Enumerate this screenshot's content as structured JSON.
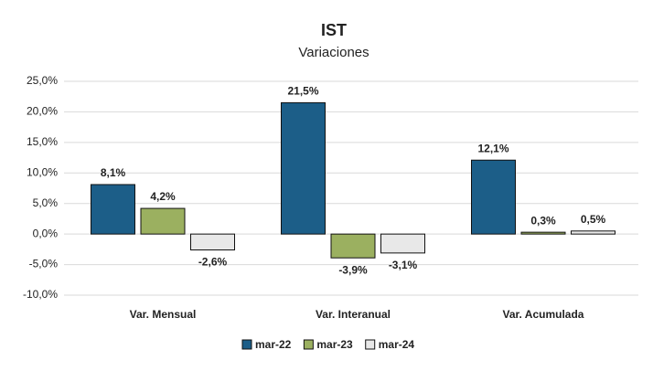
{
  "chart_data": {
    "type": "bar",
    "title": "IST",
    "subtitle": "Variaciones",
    "categories": [
      "Var. Mensual",
      "Var. Interanual",
      "Var. Acumulada"
    ],
    "series": [
      {
        "name": "mar-22",
        "color": "#1c5e88",
        "values": [
          8.1,
          21.5,
          12.1
        ],
        "value_labels": [
          "8,1%",
          "21,5%",
          "12,1%"
        ]
      },
      {
        "name": "mar-23",
        "color": "#9bb060",
        "values": [
          4.2,
          -3.9,
          0.3
        ],
        "value_labels": [
          "4,2%",
          "-3,9%",
          "0,3%"
        ]
      },
      {
        "name": "mar-24",
        "color": "#e8e8e8",
        "values": [
          -2.6,
          -3.1,
          0.5
        ],
        "value_labels": [
          "-2,6%",
          "-3,1%",
          "0,5%"
        ]
      }
    ],
    "ylim": [
      -10,
      25
    ],
    "yticks": [
      {
        "value": -10,
        "label": "-10,0%"
      },
      {
        "value": -5,
        "label": "-5,0%"
      },
      {
        "value": 0,
        "label": "0,0%"
      },
      {
        "value": 5,
        "label": "5,0%"
      },
      {
        "value": 10,
        "label": "10,0%"
      },
      {
        "value": 15,
        "label": "15,0%"
      },
      {
        "value": 20,
        "label": "20,0%"
      },
      {
        "value": 25,
        "label": "25,0%"
      }
    ],
    "grid": true,
    "legend": "bottom"
  }
}
